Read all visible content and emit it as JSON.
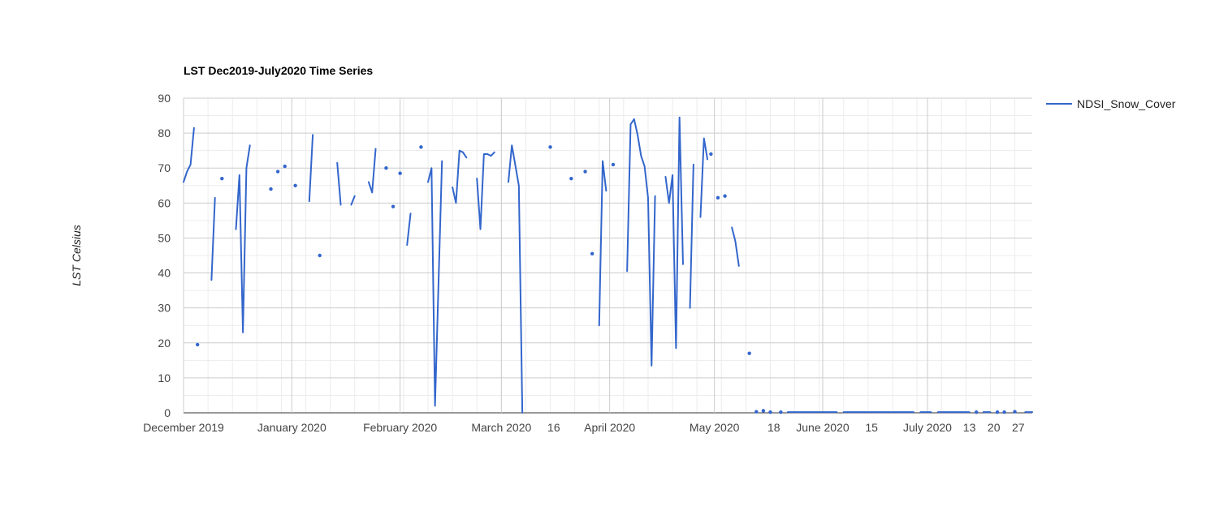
{
  "chart_data": {
    "type": "line",
    "title": "LST Dec2019-July2020 Time Series",
    "xlabel": "",
    "ylabel": "LST Celsius",
    "ylim": [
      0,
      90
    ],
    "yticks": [
      0,
      10,
      20,
      30,
      40,
      50,
      60,
      70,
      80,
      90
    ],
    "xlim": [
      "2019-12-01",
      "2020-07-31"
    ],
    "xticks": [
      {
        "date": "2019-12-01",
        "label": "December 2019"
      },
      {
        "date": "2020-01-01",
        "label": "January 2020"
      },
      {
        "date": "2020-02-01",
        "label": "February 2020"
      },
      {
        "date": "2020-03-01",
        "label": "March 2020"
      },
      {
        "date": "2020-03-16",
        "label": "16"
      },
      {
        "date": "2020-04-01",
        "label": "April 2020"
      },
      {
        "date": "2020-05-01",
        "label": "May 2020"
      },
      {
        "date": "2020-05-18",
        "label": "18"
      },
      {
        "date": "2020-06-01",
        "label": "June 2020"
      },
      {
        "date": "2020-06-15",
        "label": "15"
      },
      {
        "date": "2020-07-01",
        "label": "July 2020"
      },
      {
        "date": "2020-07-13",
        "label": "13"
      },
      {
        "date": "2020-07-20",
        "label": "20"
      },
      {
        "date": "2020-07-27",
        "label": "27"
      }
    ],
    "grid": true,
    "legend_position": "right",
    "series": [
      {
        "name": "NDSI_Snow_Cover",
        "color": "#3366cc",
        "segments": [
          [
            [
              "2019-12-01",
              66
            ],
            [
              "2019-12-02",
              69
            ],
            [
              "2019-12-03",
              71
            ],
            [
              "2019-12-04",
              81.5
            ]
          ],
          [
            [
              "2019-12-05",
              19.5
            ]
          ],
          [
            [
              "2019-12-09",
              38
            ],
            [
              "2019-12-10",
              61.5
            ]
          ],
          [
            [
              "2019-12-12",
              67
            ]
          ],
          [
            [
              "2019-12-16",
              52.5
            ],
            [
              "2019-12-17",
              68
            ],
            [
              "2019-12-18",
              23
            ],
            [
              "2019-12-19",
              70
            ],
            [
              "2019-12-20",
              76.5
            ]
          ],
          [
            [
              "2019-12-26",
              64
            ]
          ],
          [
            [
              "2019-12-28",
              69
            ]
          ],
          [
            [
              "2019-12-30",
              70.5
            ]
          ],
          [
            [
              "2020-01-02",
              65
            ]
          ],
          [
            [
              "2020-01-06",
              60.5
            ],
            [
              "2020-01-07",
              79.5
            ]
          ],
          [
            [
              "2020-01-09",
              45
            ]
          ],
          [
            [
              "2020-01-14",
              71.5
            ],
            [
              "2020-01-15",
              59.5
            ]
          ],
          [
            [
              "2020-01-18",
              59.5
            ],
            [
              "2020-01-19",
              62
            ]
          ],
          [
            [
              "2020-01-23",
              66
            ],
            [
              "2020-01-24",
              63
            ],
            [
              "2020-01-25",
              75.5
            ]
          ],
          [
            [
              "2020-01-28",
              70
            ]
          ],
          [
            [
              "2020-01-30",
              59
            ]
          ],
          [
            [
              "2020-02-01",
              68.5
            ]
          ],
          [
            [
              "2020-02-03",
              48
            ],
            [
              "2020-02-04",
              57
            ]
          ],
          [
            [
              "2020-02-07",
              76
            ]
          ],
          [
            [
              "2020-02-09",
              66
            ],
            [
              "2020-02-10",
              70
            ],
            [
              "2020-02-11",
              2
            ],
            [
              "2020-02-13",
              72
            ]
          ],
          [
            [
              "2020-02-16",
              64.5
            ],
            [
              "2020-02-17",
              60
            ],
            [
              "2020-02-18",
              75
            ],
            [
              "2020-02-19",
              74.5
            ],
            [
              "2020-02-20",
              73
            ]
          ],
          [
            [
              "2020-02-23",
              67
            ],
            [
              "2020-02-24",
              52.5
            ],
            [
              "2020-02-25",
              74
            ],
            [
              "2020-02-26",
              74
            ],
            [
              "2020-02-27",
              73.5
            ],
            [
              "2020-02-28",
              74.5
            ]
          ],
          [
            [
              "2020-03-03",
              66
            ],
            [
              "2020-03-04",
              76.5
            ],
            [
              "2020-03-06",
              65
            ],
            [
              "2020-03-07",
              0
            ]
          ],
          [
            [
              "2020-03-15",
              76
            ]
          ],
          [
            [
              "2020-03-21",
              67
            ]
          ],
          [
            [
              "2020-03-25",
              69
            ]
          ],
          [
            [
              "2020-03-27",
              45.5
            ]
          ],
          [
            [
              "2020-03-29",
              25
            ],
            [
              "2020-03-30",
              72
            ],
            [
              "2020-03-31",
              63.5
            ]
          ],
          [
            [
              "2020-04-02",
              71
            ]
          ],
          [
            [
              "2020-04-06",
              40.5
            ],
            [
              "2020-04-07",
              82.5
            ],
            [
              "2020-04-08",
              84
            ],
            [
              "2020-04-09",
              79.5
            ],
            [
              "2020-04-10",
              73.5
            ],
            [
              "2020-04-11",
              70.5
            ],
            [
              "2020-04-12",
              61.5
            ],
            [
              "2020-04-13",
              13.5
            ],
            [
              "2020-04-14",
              62
            ]
          ],
          [
            [
              "2020-04-17",
              67.5
            ],
            [
              "2020-04-18",
              60
            ],
            [
              "2020-04-19",
              68
            ],
            [
              "2020-04-20",
              18.5
            ],
            [
              "2020-04-21",
              84.5
            ],
            [
              "2020-04-22",
              42.5
            ]
          ],
          [
            [
              "2020-04-24",
              30
            ],
            [
              "2020-04-25",
              71
            ]
          ],
          [
            [
              "2020-04-27",
              56
            ],
            [
              "2020-04-28",
              78.5
            ],
            [
              "2020-04-29",
              72.5
            ]
          ],
          [
            [
              "2020-04-30",
              74
            ]
          ],
          [
            [
              "2020-05-02",
              61.5
            ]
          ],
          [
            [
              "2020-05-04",
              62
            ]
          ],
          [
            [
              "2020-05-06",
              53
            ],
            [
              "2020-05-07",
              49
            ],
            [
              "2020-05-08",
              42
            ]
          ],
          [
            [
              "2020-05-11",
              17
            ]
          ],
          [
            [
              "2020-05-13",
              0.3
            ]
          ],
          [
            [
              "2020-05-15",
              0.6
            ]
          ],
          [
            [
              "2020-05-17",
              0.2
            ]
          ],
          [
            [
              "2020-05-20",
              0.2
            ]
          ],
          [
            [
              "2020-05-22",
              0.2
            ],
            [
              "2020-06-05",
              0.2
            ]
          ],
          [
            [
              "2020-06-07",
              0.2
            ],
            [
              "2020-06-27",
              0.2
            ]
          ],
          [
            [
              "2020-06-29",
              0.2
            ],
            [
              "2020-07-02",
              0.2
            ]
          ],
          [
            [
              "2020-07-04",
              0.2
            ],
            [
              "2020-07-13",
              0.2
            ]
          ],
          [
            [
              "2020-07-15",
              0.2
            ]
          ],
          [
            [
              "2020-07-17",
              0.2
            ],
            [
              "2020-07-19",
              0.2
            ]
          ],
          [
            [
              "2020-07-21",
              0.2
            ]
          ],
          [
            [
              "2020-07-23",
              0.2
            ]
          ],
          [
            [
              "2020-07-26",
              0.3
            ]
          ],
          [
            [
              "2020-07-29",
              0.2
            ],
            [
              "2020-07-31",
              0.2
            ]
          ]
        ]
      }
    ]
  }
}
